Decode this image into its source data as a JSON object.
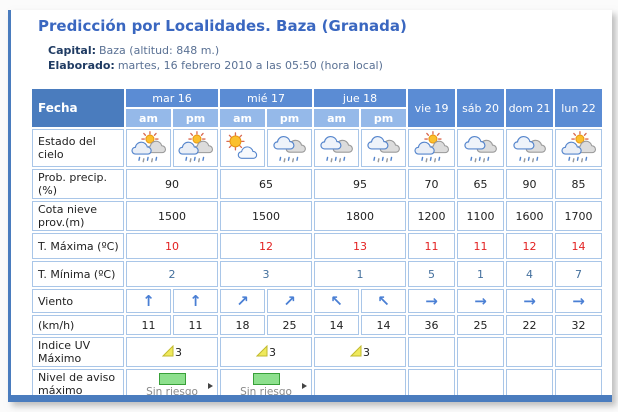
{
  "page": {
    "title": "Predicción por Localidades. Baza (Granada)",
    "meta": [
      {
        "label": "Capital:",
        "value": "Baza (altitud: 848 m.)"
      },
      {
        "label": "Elaborado:",
        "value": "martes, 16 febrero 2010 a las 05:50 (hora local)"
      }
    ]
  },
  "colors": {
    "accent_blue": "#4a7cbe",
    "day_header_blue": "#5b8cd4",
    "ampm_blue": "#95b9e9",
    "cell_border": "#a9c6e8",
    "max_temp_red": "#e32222",
    "min_temp_blue": "#44709d",
    "risk_green": "#8de08d"
  },
  "table": {
    "corner_label": "Fecha",
    "days": [
      {
        "label": "mar 16"
      },
      {
        "label": "mié 17"
      },
      {
        "label": "jue 18"
      },
      {
        "label": "vie 19"
      },
      {
        "label": "sáb 20"
      },
      {
        "label": "dom 21"
      },
      {
        "label": "lun 22"
      }
    ],
    "subheaders": [
      "am",
      "pm",
      "am",
      "pm",
      "am",
      "pm"
    ],
    "rows": {
      "sky": {
        "label": "Estado del cielo",
        "icons": [
          "sun-cloud-rain",
          "sun-cloud-rain",
          "sun-cloud",
          "clouds-rain",
          "clouds-rain",
          "clouds-rain",
          "sun-cloud-rain",
          "clouds-rain",
          "clouds-rain",
          "sun-cloud-rain"
        ]
      },
      "precip": {
        "label": "Prob. precip.(%)",
        "values": [
          "90",
          "65",
          "95",
          "70",
          "65",
          "90",
          "85"
        ]
      },
      "snow": {
        "label": "Cota nieve prov.(m)",
        "values": [
          "1500",
          "1500",
          "1800",
          "1200",
          "1100",
          "1600",
          "1700"
        ]
      },
      "tmax": {
        "label": "T. Máxima (ºC)",
        "values": [
          "10",
          "12",
          "13",
          "11",
          "11",
          "12",
          "14"
        ]
      },
      "tmin": {
        "label": "T. Mínima (ºC)",
        "values": [
          "2",
          "3",
          "1",
          "5",
          "1",
          "4",
          "7"
        ]
      },
      "wind": {
        "label": "Viento",
        "arrows": [
          "↑",
          "↑",
          "↗",
          "↗",
          "↖",
          "↖",
          "→",
          "→",
          "→",
          "→"
        ]
      },
      "windspeed": {
        "label": "(km/h)",
        "values": [
          "11",
          "11",
          "18",
          "25",
          "14",
          "14",
          "36",
          "25",
          "22",
          "32"
        ]
      },
      "uv": {
        "label": "Indice UV Máximo",
        "values": [
          "3",
          "3",
          "3"
        ]
      },
      "aviso": {
        "label": "Nivel de aviso máximo",
        "values": [
          "Sin riesgo",
          "Sin riesgo"
        ]
      }
    }
  }
}
